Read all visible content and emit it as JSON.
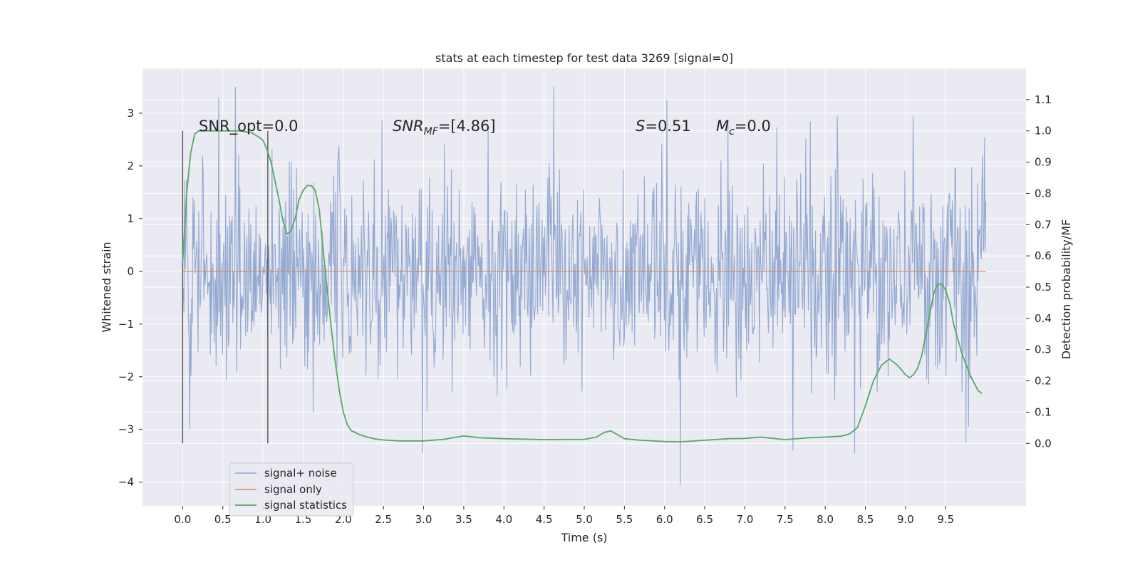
{
  "chart_data": {
    "type": "line",
    "title": "stats at each timestep for test data 3269 [signal=0]",
    "xlabel": "Time (s)",
    "ylabel": "Whitened strain",
    "y2label": "Detection probability/MF",
    "xlim": [
      -0.5,
      10.5
    ],
    "ylim": [
      -4.45,
      3.85
    ],
    "y2lim": [
      -0.2,
      1.2
    ],
    "x_ticks": [
      0.0,
      0.5,
      1.0,
      1.5,
      2.0,
      2.5,
      3.0,
      3.5,
      4.0,
      4.5,
      5.0,
      5.5,
      6.0,
      6.5,
      7.0,
      7.5,
      8.0,
      8.5,
      9.0,
      9.5
    ],
    "x_tick_labels": [
      "0.0",
      "0.5",
      "1.0",
      "1.5",
      "2.0",
      "2.5",
      "3.0",
      "3.5",
      "4.0",
      "4.5",
      "5.0",
      "5.5",
      "6.0",
      "6.5",
      "7.0",
      "7.5",
      "8.0",
      "8.5",
      "9.0",
      "9.5"
    ],
    "y_ticks": [
      -4,
      -3,
      -2,
      -1,
      0,
      1,
      2,
      3
    ],
    "y_tick_labels": [
      "−4",
      "−3",
      "−2",
      "−1",
      "0",
      "1",
      "2",
      "3"
    ],
    "y2_ticks": [
      0.0,
      0.1,
      0.2,
      0.3,
      0.4,
      0.5,
      0.6,
      0.7,
      0.8,
      0.9,
      1.0,
      1.1
    ],
    "y2_tick_labels": [
      "0.0",
      "0.1",
      "0.2",
      "0.3",
      "0.4",
      "0.5",
      "0.6",
      "0.7",
      "0.8",
      "0.9",
      "1.0",
      "1.1"
    ],
    "grid": true,
    "legend_position": "lower-left",
    "annotations": {
      "snr_opt": "SNR_opt=0.0",
      "snr_mf_base": "SNR",
      "snr_mf_sub": "MF",
      "snr_mf_value": "=[4.86]",
      "s_base": "S",
      "s_value": "=0.51",
      "mc_base": "M",
      "mc_sub": "c",
      "mc_value": "=0.0"
    },
    "vertical_markers": [
      0.0,
      1.06
    ],
    "noise": {
      "name": "signal+ noise",
      "color": "#8fa5cf",
      "x_range": [
        0.0,
        10.0
      ],
      "sample_count": 1250,
      "body_sigma": 0.95,
      "notable_peaks": [
        {
          "x": 0.45,
          "y": 3.3
        },
        {
          "x": 0.66,
          "y": 3.5
        },
        {
          "x": 4.62,
          "y": 3.5
        },
        {
          "x": 6.03,
          "y": 3.25
        },
        {
          "x": 2.99,
          "y": -3.45
        },
        {
          "x": 6.2,
          "y": -4.05
        },
        {
          "x": 8.37,
          "y": -3.45
        },
        {
          "x": 9.75,
          "y": -3.25
        },
        {
          "x": 0.09,
          "y": -3.0
        },
        {
          "x": 7.6,
          "y": -3.4
        }
      ]
    },
    "series": [
      {
        "name": "signal only",
        "color": "#dd8452",
        "axis": "left",
        "x": [
          0.0,
          10.0
        ],
        "y": [
          0.0,
          0.0
        ]
      },
      {
        "name": "signal statistics",
        "color": "#55a868",
        "axis": "right",
        "x": [
          0.0,
          0.05,
          0.1,
          0.15,
          0.2,
          0.3,
          0.5,
          0.7,
          0.85,
          0.95,
          1.0,
          1.05,
          1.1,
          1.15,
          1.2,
          1.25,
          1.3,
          1.35,
          1.4,
          1.45,
          1.5,
          1.55,
          1.6,
          1.65,
          1.7,
          1.75,
          1.8,
          1.85,
          1.9,
          1.95,
          2.0,
          2.05,
          2.1,
          2.15,
          2.2,
          2.3,
          2.4,
          2.5,
          2.7,
          3.0,
          3.25,
          3.5,
          3.7,
          4.0,
          4.5,
          5.0,
          5.15,
          5.25,
          5.33,
          5.4,
          5.5,
          5.7,
          6.0,
          6.2,
          6.5,
          6.8,
          7.0,
          7.2,
          7.5,
          7.8,
          8.0,
          8.2,
          8.3,
          8.4,
          8.5,
          8.6,
          8.7,
          8.8,
          8.9,
          9.0,
          9.05,
          9.1,
          9.15,
          9.2,
          9.3,
          9.35,
          9.4,
          9.45,
          9.5,
          9.55,
          9.6,
          9.7,
          9.8,
          9.9,
          9.95
        ],
        "y": [
          0.58,
          0.8,
          0.93,
          0.99,
          1.0,
          1.0,
          1.0,
          1.0,
          0.995,
          0.98,
          0.97,
          0.94,
          0.9,
          0.84,
          0.78,
          0.71,
          0.67,
          0.68,
          0.72,
          0.78,
          0.81,
          0.825,
          0.825,
          0.81,
          0.75,
          0.62,
          0.49,
          0.37,
          0.26,
          0.17,
          0.1,
          0.06,
          0.04,
          0.035,
          0.028,
          0.02,
          0.014,
          0.011,
          0.008,
          0.008,
          0.013,
          0.024,
          0.018,
          0.015,
          0.012,
          0.013,
          0.02,
          0.035,
          0.04,
          0.03,
          0.015,
          0.01,
          0.006,
          0.005,
          0.01,
          0.015,
          0.016,
          0.02,
          0.012,
          0.018,
          0.02,
          0.023,
          0.03,
          0.05,
          0.12,
          0.2,
          0.25,
          0.27,
          0.25,
          0.22,
          0.21,
          0.22,
          0.24,
          0.28,
          0.41,
          0.48,
          0.51,
          0.51,
          0.49,
          0.45,
          0.38,
          0.29,
          0.22,
          0.17,
          0.16
        ]
      }
    ]
  }
}
